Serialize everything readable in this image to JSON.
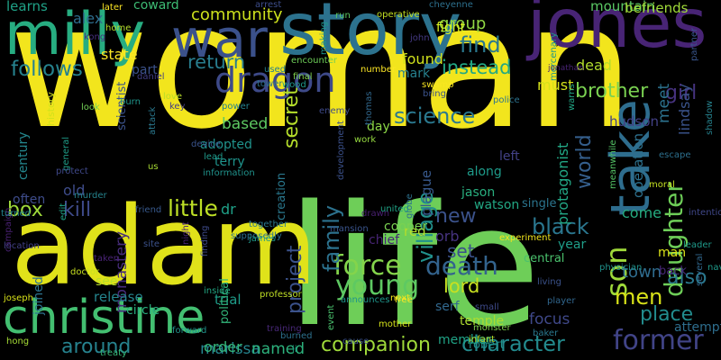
{
  "background": "#000000",
  "words": [
    {
      "text": "woman",
      "color": "#f2e51d"
    },
    {
      "text": "life",
      "color": "#6ece58"
    },
    {
      "text": "adam",
      "color": "#e0e21a"
    },
    {
      "text": "story",
      "color": "#2c728e"
    },
    {
      "text": "jones",
      "color": "#482475"
    },
    {
      "text": "milly",
      "color": "#27ad81"
    },
    {
      "text": "christine",
      "color": "#43bf71"
    },
    {
      "text": "war",
      "color": "#3b518b"
    },
    {
      "text": "take",
      "color": "#2e6d8e"
    },
    {
      "text": "dragon",
      "color": "#3e4a89"
    },
    {
      "text": "son",
      "color": "#9fda3a"
    },
    {
      "text": "daughter",
      "color": "#6ece58"
    },
    {
      "text": "force",
      "color": "#84d44b"
    },
    {
      "text": "young",
      "color": "#5ec962"
    },
    {
      "text": "death",
      "color": "#33638d"
    },
    {
      "text": "companion",
      "color": "#9fda3a"
    },
    {
      "text": "former",
      "color": "#414487"
    },
    {
      "text": "character",
      "color": "#238a8d"
    },
    {
      "text": "science",
      "color": "#2a788e"
    },
    {
      "text": "village",
      "color": "#21918c"
    },
    {
      "text": "family",
      "color": "#2c728e"
    },
    {
      "text": "project",
      "color": "#3b528b"
    },
    {
      "text": "world",
      "color": "#355f8d"
    },
    {
      "text": "follows",
      "color": "#26828e"
    },
    {
      "text": "return",
      "color": "#287d8e"
    },
    {
      "text": "find",
      "color": "#2a788e"
    },
    {
      "text": "instead",
      "color": "#22a884"
    },
    {
      "text": "brother",
      "color": "#7ad151"
    },
    {
      "text": "girl",
      "color": "#46327e"
    },
    {
      "text": "secret",
      "color": "#b5de2b"
    },
    {
      "text": "kill",
      "color": "#3e4a89"
    },
    {
      "text": "box",
      "color": "#9fda3a"
    },
    {
      "text": "little",
      "color": "#bddf26"
    },
    {
      "text": "black",
      "color": "#2a768e"
    },
    {
      "text": "new",
      "color": "#3b528b"
    },
    {
      "text": "men",
      "color": "#d8e219"
    },
    {
      "text": "lord",
      "color": "#c8e020"
    },
    {
      "text": "also",
      "color": "#2a788e"
    },
    {
      "text": "place",
      "color": "#228c8d"
    },
    {
      "text": "around",
      "color": "#26828e"
    },
    {
      "text": "set",
      "color": "#3b528b"
    },
    {
      "text": "community",
      "color": "#cde11d"
    },
    {
      "text": "group",
      "color": "#90d743"
    },
    {
      "text": "state",
      "color": "#fde725"
    },
    {
      "text": "meet",
      "color": "#2c728e"
    },
    {
      "text": "based",
      "color": "#5ec962"
    },
    {
      "text": "monastery",
      "color": "#472d7b"
    },
    {
      "text": "orb",
      "color": "#46337f"
    },
    {
      "text": "come",
      "color": "#26ad81"
    },
    {
      "text": "red",
      "color": "#b5de2b"
    },
    {
      "text": "plague",
      "color": "#38598c"
    },
    {
      "text": "marissa",
      "color": "#25848e"
    },
    {
      "text": "named",
      "color": "#2db27d"
    },
    {
      "text": "order",
      "color": "#35b779"
    },
    {
      "text": "town",
      "color": "#2f6c8e"
    },
    {
      "text": "focus",
      "color": "#3f4889"
    },
    {
      "text": "operation",
      "color": "#2d718e"
    },
    {
      "text": "protagonist",
      "color": "#22a785"
    },
    {
      "text": "adopted",
      "color": "#20938c"
    },
    {
      "text": "terry",
      "color": "#1f948c"
    },
    {
      "text": "alex",
      "color": "#2e6e8e"
    },
    {
      "text": "learns",
      "color": "#1fa287"
    },
    {
      "text": "coward",
      "color": "#3dbc74"
    },
    {
      "text": "mountain",
      "color": "#5ac864"
    },
    {
      "text": "befriends",
      "color": "#a0da39"
    },
    {
      "text": "found",
      "color": "#d0e11c"
    },
    {
      "text": "mark",
      "color": "#26818e"
    },
    {
      "text": "dead",
      "color": "#b2dd2d"
    },
    {
      "text": "must",
      "color": "#d5e21a"
    },
    {
      "text": "hudson",
      "color": "#424086"
    },
    {
      "text": "lindsay",
      "color": "#3a538b"
    },
    {
      "text": "old",
      "color": "#3e4c8a"
    },
    {
      "text": "dr",
      "color": "#1fa188"
    },
    {
      "text": "part",
      "color": "#3b528b"
    },
    {
      "text": "temple",
      "color": "#addc30"
    },
    {
      "text": "robert",
      "color": "#21918c"
    },
    {
      "text": "member",
      "color": "#20a386"
    },
    {
      "text": "serf",
      "color": "#31688e"
    },
    {
      "text": "watson",
      "color": "#22a884"
    },
    {
      "text": "cooper",
      "color": "#7ad151"
    },
    {
      "text": "chief",
      "color": "#482576"
    },
    {
      "text": "fight",
      "color": "#ddf620"
    },
    {
      "text": "release",
      "color": "#25858e"
    },
    {
      "text": "circle",
      "color": "#29af7f"
    },
    {
      "text": "see",
      "color": "#b8de29"
    },
    {
      "text": "trial",
      "color": "#1e9c89"
    },
    {
      "text": "jason",
      "color": "#29af7f"
    },
    {
      "text": "single",
      "color": "#2b758e"
    },
    {
      "text": "central",
      "color": "#4ac16d"
    },
    {
      "text": "year",
      "color": "#1f9e89"
    },
    {
      "text": "man",
      "color": "#dde318"
    },
    {
      "text": "back",
      "color": "#482878"
    },
    {
      "text": "attempt",
      "color": "#2e6e8e"
    },
    {
      "text": "along",
      "color": "#1e9b8a"
    },
    {
      "text": "left",
      "color": "#424186"
    },
    {
      "text": "day",
      "color": "#8bd646"
    },
    {
      "text": "century",
      "color": "#24878e"
    },
    {
      "text": "often",
      "color": "#3e4c8a"
    },
    {
      "text": "joined",
      "color": "#2c728e"
    },
    {
      "text": "political",
      "color": "#32b67a"
    },
    {
      "text": "scientist",
      "color": "#3b528b"
    },
    {
      "text": "creation",
      "color": "#2a788e"
    },
    {
      "text": "history",
      "color": "#d2e21b"
    },
    {
      "text": "campaign",
      "color": "#482071"
    },
    {
      "text": "joseph",
      "color": "#d8e219"
    },
    {
      "text": "location",
      "color": "#424086"
    },
    {
      "text": "hong",
      "color": "#a5db36"
    },
    {
      "text": "kong",
      "color": "#46307e"
    },
    {
      "text": "later",
      "color": "#fde725"
    },
    {
      "text": "home",
      "color": "#b4de2c"
    },
    {
      "text": "daniel",
      "color": "#433e85"
    },
    {
      "text": "run",
      "color": "#5cc863"
    },
    {
      "text": "operative",
      "color": "#c2df23"
    },
    {
      "text": "john",
      "color": "#443983"
    },
    {
      "text": "cheyenne",
      "color": "#2d708e"
    },
    {
      "text": "mercenary",
      "color": "#1f968b"
    },
    {
      "text": "partner",
      "color": "#39558c"
    },
    {
      "text": "jonathan",
      "color": "#482374"
    },
    {
      "text": "arrest",
      "color": "#3d4d8a"
    },
    {
      "text": "making",
      "color": "#1f948c"
    },
    {
      "text": "number",
      "color": "#fde725"
    },
    {
      "text": "encounter",
      "color": "#6ece58"
    },
    {
      "text": "final",
      "color": "#7fd34e"
    },
    {
      "text": "swamp",
      "color": "#f8e621"
    },
    {
      "text": "bring",
      "color": "#3b528b"
    },
    {
      "text": "police",
      "color": "#2c738e"
    },
    {
      "text": "warns",
      "color": "#21a685"
    },
    {
      "text": "shadow",
      "color": "#26828e"
    },
    {
      "text": "escape",
      "color": "#2d708e"
    },
    {
      "text": "meanwhile",
      "color": "#56c667"
    },
    {
      "text": "moral",
      "color": "#c5e021"
    },
    {
      "text": "intention",
      "color": "#3f4788"
    },
    {
      "text": "several",
      "color": "#31688e"
    },
    {
      "text": "naval",
      "color": "#1e9b8a"
    },
    {
      "text": "physician",
      "color": "#20928c"
    },
    {
      "text": "leader",
      "color": "#1f9a8a"
    },
    {
      "text": "living",
      "color": "#3b528b"
    },
    {
      "text": "player",
      "color": "#31678e"
    },
    {
      "text": "baker",
      "color": "#2a788e"
    },
    {
      "text": "experiment",
      "color": "#f1e51d"
    },
    {
      "text": "small",
      "color": "#3e4a89"
    },
    {
      "text": "monster",
      "color": "#7fd34e"
    },
    {
      "text": "infant",
      "color": "#b5de2b"
    },
    {
      "text": "mother",
      "color": "#d5e21a"
    },
    {
      "text": "free",
      "color": "#fde725"
    },
    {
      "text": "announces",
      "color": "#1f958b"
    },
    {
      "text": "event",
      "color": "#4ac16d"
    },
    {
      "text": "cause",
      "color": "#3b528b"
    },
    {
      "text": "mansion",
      "color": "#3a548c"
    },
    {
      "text": "drawn",
      "color": "#481f70"
    },
    {
      "text": "united",
      "color": "#20a386"
    },
    {
      "text": "globe",
      "color": "#2c718e"
    },
    {
      "text": "next",
      "color": "#f1e51d"
    },
    {
      "text": "burned",
      "color": "#2d718e"
    },
    {
      "text": "ii",
      "color": "#20a386"
    },
    {
      "text": "training",
      "color": "#482878"
    },
    {
      "text": "forward",
      "color": "#20938c"
    },
    {
      "text": "treaty",
      "color": "#37b878"
    },
    {
      "text": "taken",
      "color": "#482374"
    },
    {
      "text": "site",
      "color": "#3b518b"
    },
    {
      "text": "night",
      "color": "#482374"
    },
    {
      "text": "finding",
      "color": "#3e4a89"
    },
    {
      "text": "supposedly",
      "color": "#2d708e"
    },
    {
      "text": "together",
      "color": "#2a788e"
    },
    {
      "text": "james",
      "color": "#1f9a8a"
    },
    {
      "text": "professor",
      "color": "#c0df25"
    },
    {
      "text": "inside",
      "color": "#22a884"
    },
    {
      "text": "doctor",
      "color": "#c8e020"
    },
    {
      "text": "edit",
      "color": "#20a386"
    },
    {
      "text": "murder",
      "color": "#25848e"
    },
    {
      "text": "turned",
      "color": "#25848e"
    },
    {
      "text": "friend",
      "color": "#38598c"
    },
    {
      "text": "us",
      "color": "#a8db34"
    },
    {
      "text": "development",
      "color": "#3b518b"
    },
    {
      "text": "information",
      "color": "#20938c"
    },
    {
      "text": "device",
      "color": "#3a548c"
    },
    {
      "text": "lead",
      "color": "#1f998a"
    },
    {
      "text": "attack",
      "color": "#2a788e"
    },
    {
      "text": "general",
      "color": "#1f9e89"
    },
    {
      "text": "protect",
      "color": "#3f4889"
    },
    {
      "text": "burn",
      "color": "#1f968b"
    },
    {
      "text": "look",
      "color": "#73d056"
    },
    {
      "text": "enemy",
      "color": "#3e4a89"
    },
    {
      "text": "work",
      "color": "#95d840"
    },
    {
      "text": "thomas",
      "color": "#31688e"
    },
    {
      "text": "wood",
      "color": "#1f998a"
    },
    {
      "text": "used",
      "color": "#27808e"
    },
    {
      "text": "tower",
      "color": "#2d708e"
    },
    {
      "text": "power",
      "color": "#26828e"
    },
    {
      "text": "key",
      "color": "#433e85"
    },
    {
      "text": "love",
      "color": "#b8de29"
    },
    {
      "text": "bride",
      "color": "#1fa287"
    }
  ]
}
